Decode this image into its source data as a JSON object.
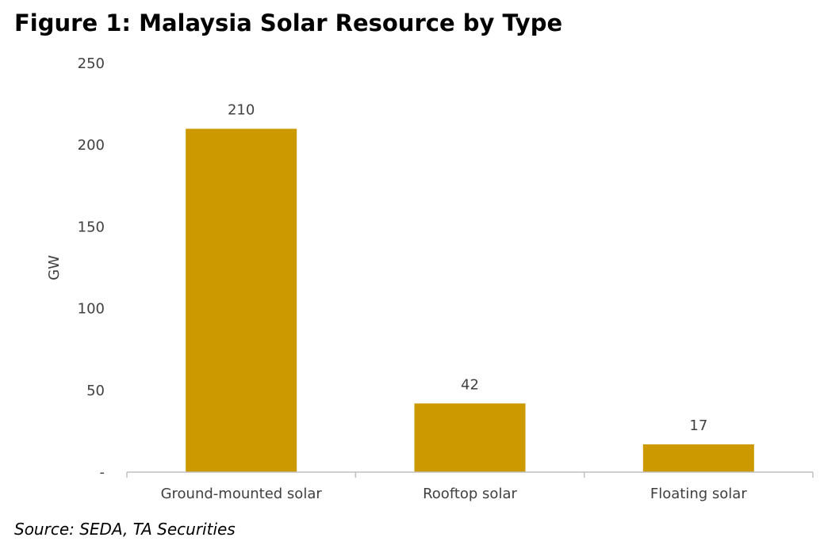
{
  "title": "Figure 1: Malaysia Solar Resource by Type",
  "source": "Source: SEDA, TA Securities",
  "chart_data": {
    "type": "bar",
    "categories": [
      "Ground-mounted solar",
      "Rooftop solar",
      "Floating solar"
    ],
    "values": [
      210,
      42,
      17
    ],
    "value_labels": [
      "210",
      "42",
      "17"
    ],
    "title": "",
    "xlabel": "",
    "ylabel": "GW",
    "ylim": [
      0,
      250
    ],
    "yticks": [
      0,
      50,
      100,
      150,
      200,
      250
    ],
    "ytick_labels": [
      "-",
      "50",
      "100",
      "150",
      "200",
      "250"
    ],
    "grid": false,
    "legend": "none",
    "colors": {
      "bar": "#CC9A00",
      "axis": "#BFBFBF",
      "text": "#404040"
    }
  }
}
